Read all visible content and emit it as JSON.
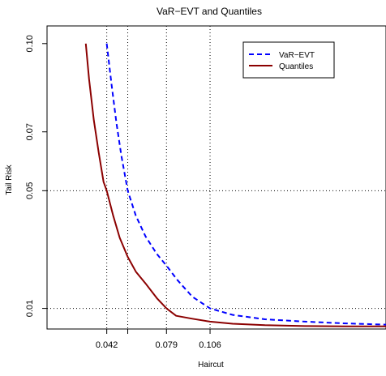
{
  "chart_data": {
    "type": "line",
    "title": "VaR−EVT and Quantiles",
    "xlabel": "Haircut",
    "ylabel": "Tail Risk",
    "xlim": [
      0.005,
      0.215
    ],
    "ylim": [
      0.003,
      0.106
    ],
    "grid": false,
    "x_ticks": [
      {
        "value": 0.042,
        "label": "0.042"
      },
      {
        "value": 0.079,
        "label": "0.079"
      },
      {
        "value": 0.106,
        "label": "0.106"
      }
    ],
    "x_extra_tick": 0.055,
    "y_ticks": [
      {
        "value": 0.01,
        "label": "0.01"
      },
      {
        "value": 0.05,
        "label": "0.05"
      },
      {
        "value": 0.07,
        "label": "0.07"
      },
      {
        "value": 0.1,
        "label": "0.10"
      }
    ],
    "reference_lines": {
      "vertical": [
        0.042,
        0.055,
        0.079,
        0.106
      ],
      "horizontal": [
        0.01,
        0.05
      ]
    },
    "legend_position": "top-right",
    "series": [
      {
        "name": "VaR−EVT",
        "color": "#0000ff",
        "dash": "dashed",
        "x": [
          0.042,
          0.045,
          0.048,
          0.051,
          0.055,
          0.06,
          0.066,
          0.073,
          0.079,
          0.086,
          0.095,
          0.106,
          0.12,
          0.14,
          0.165,
          0.19,
          0.215
        ],
        "y": [
          0.1,
          0.086,
          0.073,
          0.062,
          0.05,
          0.0415,
          0.0345,
          0.0285,
          0.0245,
          0.0195,
          0.014,
          0.01,
          0.0078,
          0.0063,
          0.0055,
          0.0049,
          0.0045
        ]
      },
      {
        "name": "Quantiles",
        "color": "#8b0000",
        "dash": "solid",
        "x": [
          0.029,
          0.031,
          0.034,
          0.037,
          0.04,
          0.042,
          0.046,
          0.05,
          0.055,
          0.06,
          0.066,
          0.073,
          0.079,
          0.085,
          0.095,
          0.106,
          0.12,
          0.14,
          0.165,
          0.19,
          0.215
        ],
        "y": [
          0.1,
          0.088,
          0.074,
          0.063,
          0.053,
          0.05,
          0.0415,
          0.034,
          0.0275,
          0.0225,
          0.0185,
          0.0135,
          0.01,
          0.0075,
          0.0065,
          0.0055,
          0.0048,
          0.0043,
          0.004,
          0.0039,
          0.0039
        ]
      }
    ]
  }
}
